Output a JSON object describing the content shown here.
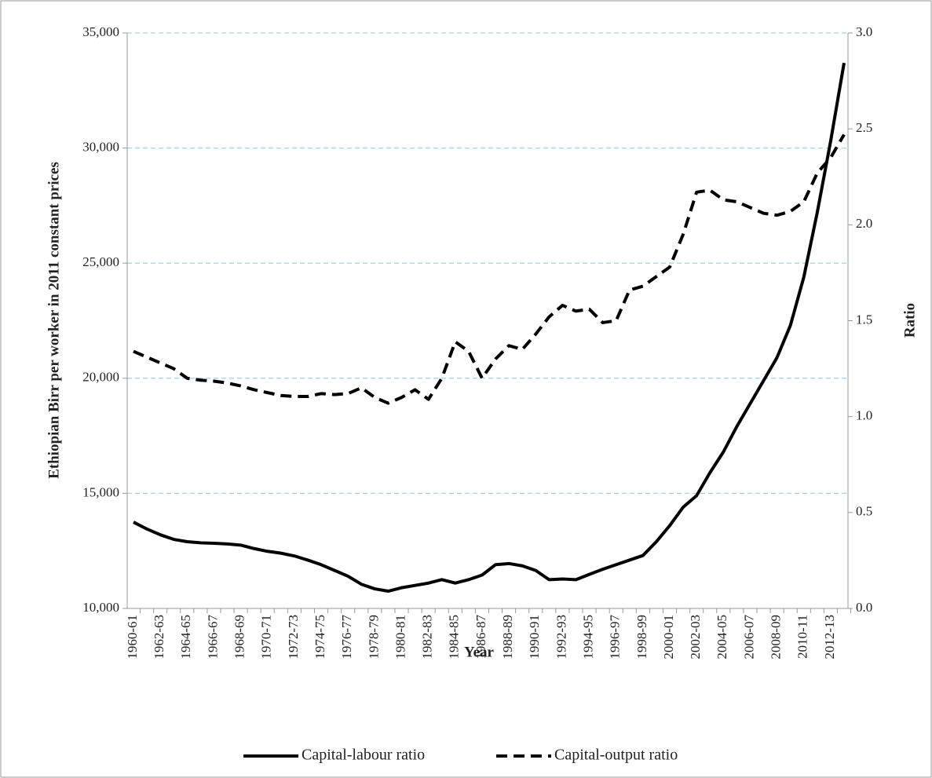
{
  "chart_data": {
    "type": "line",
    "xlabel": "Year",
    "ylabel": "Ethiopian Birr per worker in 2011 constant prices",
    "y2label": "Ratio",
    "categories": [
      "1960-61",
      null,
      "1962-63",
      null,
      "1964-65",
      null,
      "1966-67",
      null,
      "1968-69",
      null,
      "1970-71",
      null,
      "1972-73",
      null,
      "1974-75",
      null,
      "1976-77",
      null,
      "1978-79",
      null,
      "1980-81",
      null,
      "1982-83",
      null,
      "1984-85",
      null,
      "1986-87",
      null,
      "1988-89",
      null,
      "1990-91",
      null,
      "1992-93",
      null,
      "1994-95",
      null,
      "1996-97",
      null,
      "1998-99",
      null,
      "2000-01",
      null,
      "2002-03",
      null,
      "2004-05",
      null,
      "2006-07",
      null,
      "2008-09",
      null,
      "2010-11",
      null,
      "2012-13",
      null
    ],
    "series": [
      {
        "name": "Capital-labour ratio",
        "color": "#000000",
        "line_style": "solid",
        "values": [
          13750,
          13450,
          13200,
          13000,
          12900,
          12850,
          12830,
          12800,
          12750,
          12600,
          12480,
          12400,
          12280,
          12100,
          11900,
          11650,
          11400,
          11050,
          10850,
          10750,
          10900,
          11000,
          11100,
          11250,
          11100,
          11250,
          11450,
          11900,
          11950,
          11850,
          11650,
          11250,
          11280,
          11250,
          11480,
          11700,
          11900,
          12100,
          12300,
          12900,
          13600,
          14400,
          14900,
          15900,
          16800,
          17900,
          18900,
          19900,
          20900,
          22300,
          24400,
          27200,
          30300,
          33700
        ]
      },
      {
        "name": "Capital-output ratio",
        "color": "#000000",
        "line_style": "dashed",
        "axis": "y2",
        "values": [
          1.34,
          1.31,
          1.28,
          1.25,
          1.2,
          1.19,
          1.185,
          1.175,
          1.16,
          1.14,
          1.125,
          1.11,
          1.105,
          1.105,
          1.12,
          1.115,
          1.12,
          1.15,
          1.1,
          1.07,
          1.1,
          1.14,
          1.09,
          1.2,
          1.39,
          1.34,
          1.2,
          1.3,
          1.37,
          1.35,
          1.43,
          1.52,
          1.58,
          1.55,
          1.56,
          1.49,
          1.5,
          1.66,
          1.68,
          1.73,
          1.78,
          1.95,
          2.17,
          2.18,
          2.13,
          2.12,
          2.09,
          2.06,
          2.05,
          2.07,
          2.12,
          2.27,
          2.35,
          2.47
        ]
      }
    ],
    "ylim": [
      10000,
      35000
    ],
    "yticks": [
      {
        "value": 10000,
        "label": "10,000"
      },
      {
        "value": 15000,
        "label": "15,000"
      },
      {
        "value": 20000,
        "label": "20,000"
      },
      {
        "value": 25000,
        "label": "25,000"
      },
      {
        "value": 30000,
        "label": "30,000"
      },
      {
        "value": 35000,
        "label": "35,000"
      }
    ],
    "y2lim": [
      0,
      3
    ],
    "y2ticks": [
      {
        "value": 0,
        "label": "0.0"
      },
      0.5,
      {
        "value": 1,
        "label": "1.0"
      },
      1.5,
      {
        "value": 2,
        "label": "2.0"
      },
      2.5,
      {
        "value": 3,
        "label": "3.0"
      }
    ],
    "grid": true,
    "grid_color": "#a9d4e0",
    "legend": "bottom"
  }
}
